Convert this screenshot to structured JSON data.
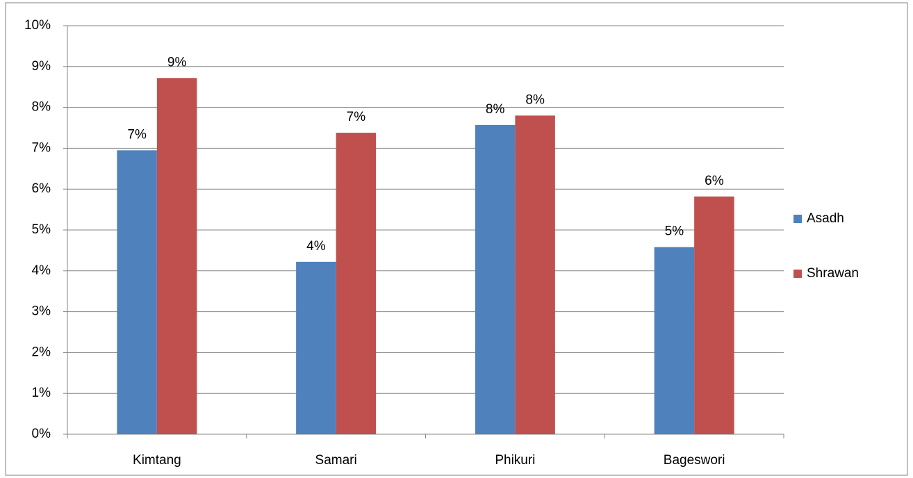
{
  "chart_data": {
    "type": "bar",
    "categories": [
      "Kimtang",
      "Samari",
      "Phikuri",
      "Bageswori"
    ],
    "series": [
      {
        "name": "Asadh",
        "color": "#4f81bd",
        "values": [
          6.95,
          4.22,
          7.57,
          4.58
        ],
        "value_labels": [
          "7%",
          "4%",
          "8%",
          "5%"
        ]
      },
      {
        "name": "Shrawan",
        "color": "#c0504d",
        "values": [
          8.72,
          7.38,
          7.8,
          5.82
        ],
        "value_labels": [
          "9%",
          "7%",
          "8%",
          "6%"
        ]
      }
    ],
    "ylim": [
      0,
      10
    ],
    "yticks": [
      {
        "value": 0,
        "label": "0%"
      },
      {
        "value": 1,
        "label": "1%"
      },
      {
        "value": 2,
        "label": "2%"
      },
      {
        "value": 3,
        "label": "3%"
      },
      {
        "value": 4,
        "label": "4%"
      },
      {
        "value": 5,
        "label": "5%"
      },
      {
        "value": 6,
        "label": "6%"
      },
      {
        "value": 7,
        "label": "7%"
      },
      {
        "value": 8,
        "label": "8%"
      },
      {
        "value": 9,
        "label": "9%"
      },
      {
        "value": 10,
        "label": "10%"
      }
    ],
    "grid": true,
    "legend": "right"
  }
}
